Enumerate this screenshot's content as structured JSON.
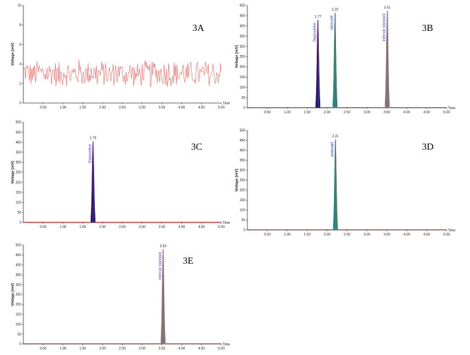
{
  "colors": {
    "axis": "#333333",
    "baseline": "#ff3333",
    "noise": "#f06060",
    "dapoxetine": "#1a1a7a",
    "sildenafil": "#1e8a7e",
    "internal_standard": "#7a7a7a",
    "peak_label": "#2b2bd6"
  },
  "chart_data": [
    {
      "id": "3A",
      "type": "line",
      "panel_label": "3A",
      "ylabel": "Voltage [mV]",
      "xlabel": "Time",
      "xlim": [
        0,
        5.0
      ],
      "ylim": [
        0,
        10
      ],
      "xticks": [
        "0.50",
        "1.00",
        "1.50",
        "2.00",
        "2.50",
        "3.00",
        "3.50",
        "4.00",
        "4.50",
        "5.00"
      ],
      "yticks": [
        "0",
        "2",
        "4",
        "6",
        "8",
        "10"
      ],
      "series": [
        {
          "noise_mean": 3.0,
          "noise_amplitude": 1.3,
          "samples": 260
        }
      ],
      "peaks": []
    },
    {
      "id": "3B",
      "type": "line",
      "panel_label": "3B",
      "ylabel": "Voltage [mV]",
      "xlabel": "Time",
      "xlim": [
        0,
        5.0
      ],
      "ylim": [
        0,
        500
      ],
      "xticks": [
        "0.50",
        "1.00",
        "1.50",
        "2.00",
        "2.50",
        "3.00",
        "3.50",
        "4.00",
        "4.50",
        "5.00"
      ],
      "yticks": [
        "0",
        "50",
        "100",
        "150",
        "200",
        "250",
        "300",
        "350",
        "400",
        "450",
        "500"
      ],
      "peaks": [
        {
          "rt": 1.77,
          "rt_label": "1.77",
          "height": 430,
          "name": "Dapoxetine",
          "color_key": "dapoxetine"
        },
        {
          "rt": 2.2,
          "rt_label": "2.20",
          "height": 465,
          "name": "sildenafil",
          "color_key": "sildenafil"
        },
        {
          "rt": 3.51,
          "rt_label": "3.51",
          "height": 475,
          "name": "internal standard",
          "color_key": "internal_standard"
        }
      ]
    },
    {
      "id": "3C",
      "type": "line",
      "panel_label": "3C",
      "ylabel": "Voltage [mV]",
      "xlabel": "Time",
      "xlim": [
        0,
        5.0
      ],
      "ylim": [
        0,
        500
      ],
      "xticks": [
        "0.50",
        "1.00",
        "1.50",
        "2.00",
        "2.50",
        "3.00",
        "3.50",
        "4.00",
        "4.50",
        "5.00"
      ],
      "yticks": [
        "0",
        "50",
        "100",
        "150",
        "200",
        "250",
        "300",
        "350",
        "400",
        "450",
        "500"
      ],
      "peaks": [
        {
          "rt": 1.76,
          "rt_label": "1.76",
          "height": 405,
          "name": "Dapoxetine",
          "color_key": "dapoxetine"
        }
      ]
    },
    {
      "id": "3D",
      "type": "line",
      "panel_label": "3D",
      "ylabel": "Voltage [mV]",
      "xlabel": "Time",
      "xlim": [
        0,
        5.0
      ],
      "ylim": [
        0,
        500
      ],
      "xticks": [
        "0.50",
        "1.00",
        "1.50",
        "2.00",
        "2.50",
        "3.00",
        "3.50",
        "4.00",
        "4.50",
        "5.00"
      ],
      "yticks": [
        "0",
        "50",
        "100",
        "150",
        "200",
        "250",
        "300",
        "350",
        "400",
        "450",
        "500"
      ],
      "peaks": [
        {
          "rt": 2.21,
          "rt_label": "2.21",
          "height": 455,
          "name": "sildenafil",
          "color_key": "sildenafil"
        }
      ]
    },
    {
      "id": "3E",
      "type": "line",
      "panel_label": "3E",
      "ylabel": "Voltage [mV]",
      "xlabel": "Time",
      "xlim": [
        0,
        5.0
      ],
      "ylim": [
        0,
        500
      ],
      "xticks": [
        "0.50",
        "1.00",
        "1.50",
        "2.00",
        "2.50",
        "3.00",
        "3.50",
        "4.00",
        "4.50",
        "5.00"
      ],
      "yticks": [
        "0",
        "50",
        "100",
        "150",
        "200",
        "250",
        "300",
        "350",
        "400",
        "450",
        "500"
      ],
      "peaks": [
        {
          "rt": 3.53,
          "rt_label": "3.53",
          "height": 480,
          "name": "internal standard",
          "color_key": "internal_standard"
        }
      ]
    }
  ]
}
